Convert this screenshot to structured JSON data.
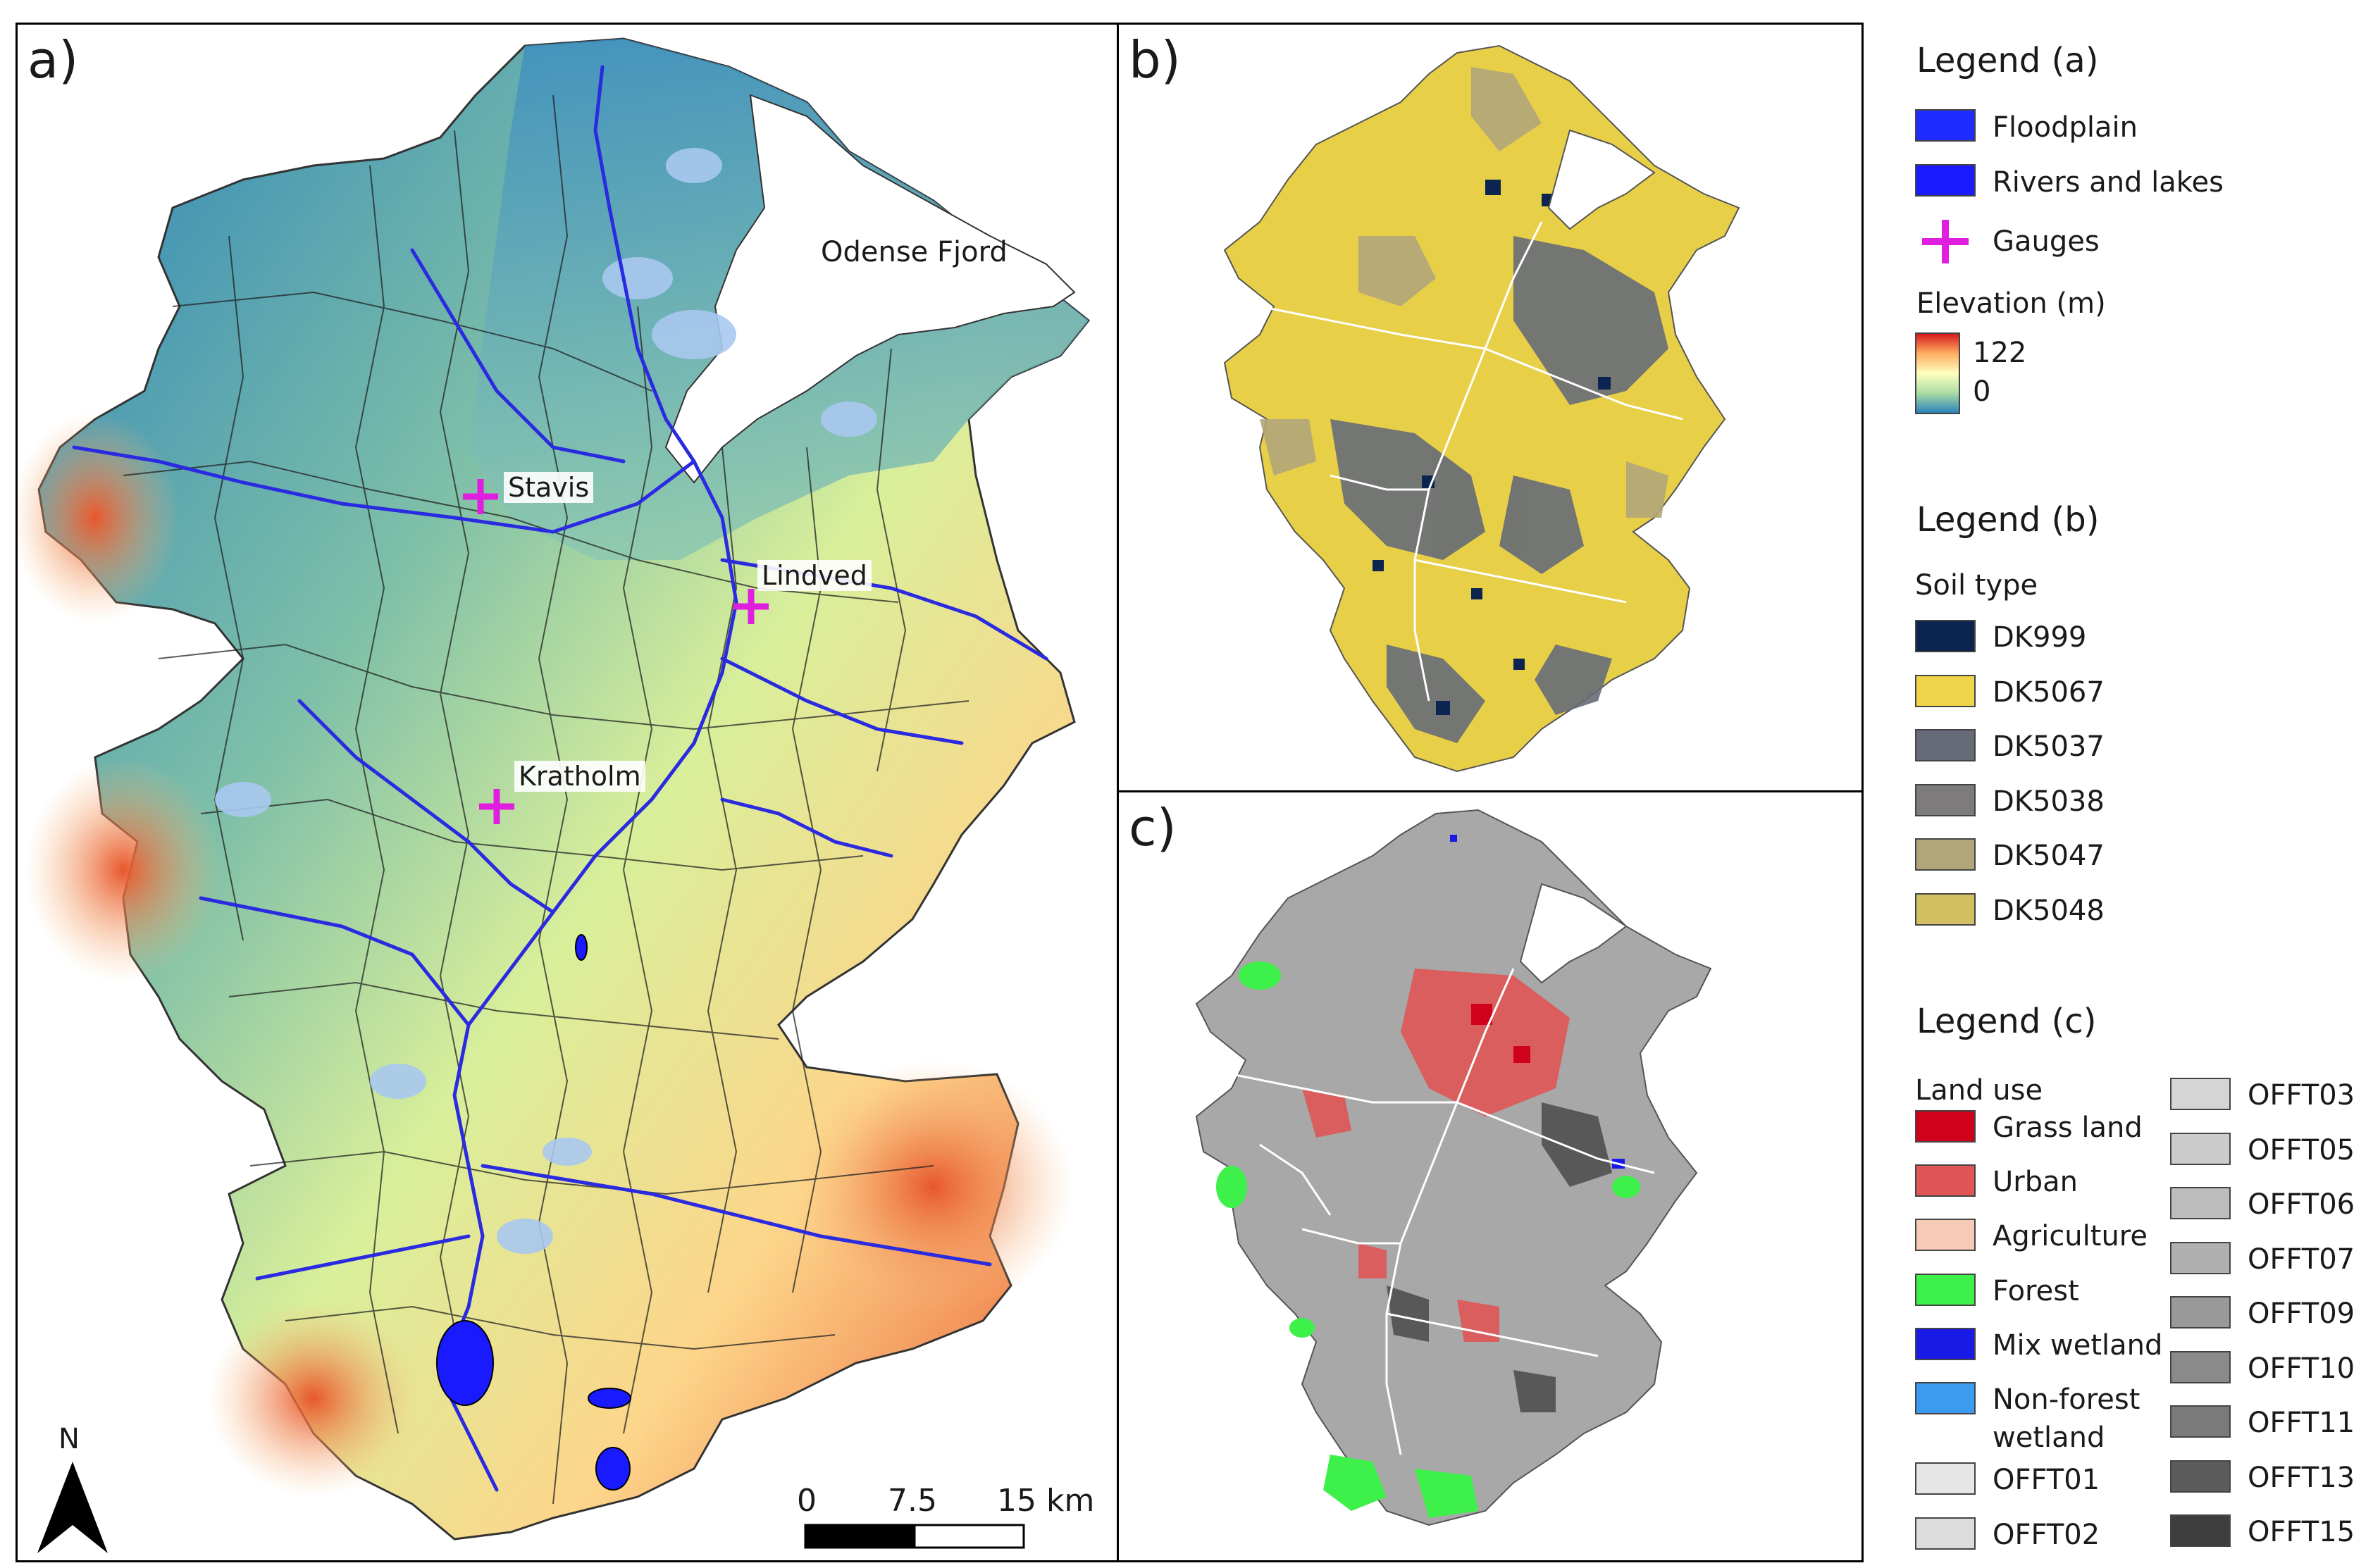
{
  "panels": {
    "a": {
      "label": "a)"
    },
    "b": {
      "label": "b)"
    },
    "c": {
      "label": "c)"
    }
  },
  "map_a": {
    "fjord_label": "Odense Fjord",
    "gauges": [
      "Stavis",
      "Lindved",
      "Kratholm"
    ],
    "north_label": "N",
    "scalebar": {
      "labels": [
        "0",
        "7.5",
        "15 km"
      ]
    }
  },
  "legend_a": {
    "title": "Legend (a)",
    "items": [
      {
        "label": "Floodplain",
        "color": "#1f2cff"
      },
      {
        "label": "Rivers and lakes",
        "color": "#1a1aff"
      },
      {
        "label": "Gauges",
        "color": "#e01ee0"
      }
    ],
    "elevation": {
      "title": "Elevation (m)",
      "max": "122",
      "min": "0",
      "colors": [
        "#d7191c",
        "#fdae61",
        "#ffffbf",
        "#abdda4",
        "#2b83ba"
      ]
    }
  },
  "legend_b": {
    "title": "Legend (b)",
    "subtitle": "Soil type",
    "items": [
      {
        "label": "DK999",
        "color": "#0b2550"
      },
      {
        "label": "DK5067",
        "color": "#f0d54a"
      },
      {
        "label": "DK5037",
        "color": "#666b77"
      },
      {
        "label": "DK5038",
        "color": "#7d7b7b"
      },
      {
        "label": "DK5047",
        "color": "#b2a57a"
      },
      {
        "label": "DK5048",
        "color": "#d1bf62"
      }
    ]
  },
  "legend_c": {
    "title": "Legend (c)",
    "subtitle": "Land use",
    "col1": [
      {
        "label": "Grass land",
        "color": "#d0021b"
      },
      {
        "label": "Urban",
        "color": "#e05555"
      },
      {
        "label": "Agriculture",
        "color": "#f7c9b7"
      },
      {
        "label": "Forest",
        "color": "#3ef04a"
      },
      {
        "label": "Mix wetland",
        "color": "#1a1ae6"
      },
      {
        "label": "Non-forest",
        "label2": "wetland",
        "color": "#3b9bf0"
      },
      {
        "label": "OFFT01",
        "color": "#e6e6e6"
      },
      {
        "label": "OFFT02",
        "color": "#dcdcdc"
      }
    ],
    "col2": [
      {
        "label": "OFFT03",
        "color": "#d5d5d5"
      },
      {
        "label": "OFFT05",
        "color": "#cccccc"
      },
      {
        "label": "OFFT06",
        "color": "#bdbdbd"
      },
      {
        "label": "OFFT07",
        "color": "#b0b0b0"
      },
      {
        "label": "OFFT09",
        "color": "#999999"
      },
      {
        "label": "OFFT10",
        "color": "#8a8a8a"
      },
      {
        "label": "OFFT11",
        "color": "#7a7a7a"
      },
      {
        "label": "OFFT13",
        "color": "#5c5c5c"
      },
      {
        "label": "OFFT15",
        "color": "#3d3d3d"
      }
    ]
  }
}
